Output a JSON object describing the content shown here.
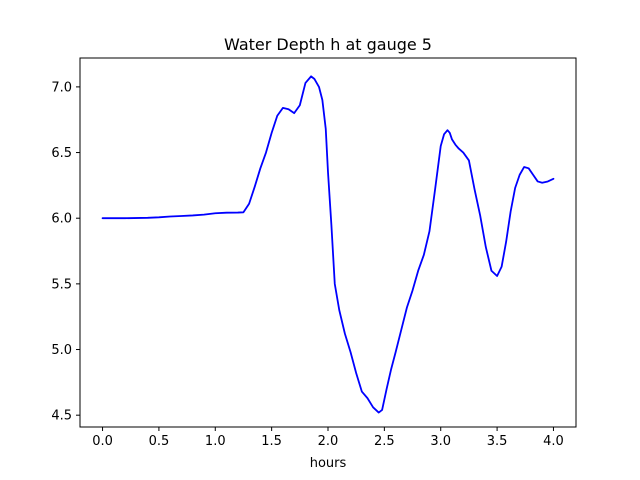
{
  "chart_data": {
    "type": "line",
    "title": "Water Depth h at gauge 5",
    "xlabel": "hours",
    "ylabel": "",
    "xlim": [
      -0.2,
      4.2
    ],
    "ylim": [
      4.41,
      7.22
    ],
    "x_ticks": [
      0.0,
      0.5,
      1.0,
      1.5,
      2.0,
      2.5,
      3.0,
      3.5,
      4.0
    ],
    "x_tick_labels": [
      "0.0",
      "0.5",
      "1.0",
      "1.5",
      "2.0",
      "2.5",
      "3.0",
      "3.5",
      "4.0"
    ],
    "y_ticks": [
      4.5,
      5.0,
      5.5,
      6.0,
      6.5,
      7.0
    ],
    "y_tick_labels": [
      "4.5",
      "5.0",
      "5.5",
      "6.0",
      "6.5",
      "7.0"
    ],
    "grid": false,
    "series": [
      {
        "name": "h",
        "color": "#0000ff",
        "x": [
          0.0,
          0.2,
          0.4,
          0.5,
          0.6,
          0.7,
          0.8,
          0.9,
          1.0,
          1.1,
          1.2,
          1.25,
          1.3,
          1.35,
          1.4,
          1.45,
          1.5,
          1.55,
          1.6,
          1.65,
          1.7,
          1.75,
          1.8,
          1.85,
          1.88,
          1.92,
          1.95,
          1.98,
          2.0,
          2.03,
          2.06,
          2.1,
          2.15,
          2.2,
          2.25,
          2.3,
          2.35,
          2.4,
          2.45,
          2.48,
          2.52,
          2.56,
          2.6,
          2.65,
          2.7,
          2.75,
          2.8,
          2.85,
          2.9,
          2.95,
          3.0,
          3.03,
          3.06,
          3.08,
          3.1,
          3.13,
          3.16,
          3.2,
          3.25,
          3.3,
          3.35,
          3.4,
          3.45,
          3.5,
          3.54,
          3.58,
          3.62,
          3.66,
          3.7,
          3.74,
          3.78,
          3.82,
          3.86,
          3.9,
          3.95,
          4.0
        ],
        "y": [
          6.0,
          6.0,
          6.003,
          6.007,
          6.013,
          6.017,
          6.021,
          6.027,
          6.038,
          6.042,
          6.043,
          6.045,
          6.11,
          6.24,
          6.38,
          6.5,
          6.65,
          6.78,
          6.84,
          6.83,
          6.8,
          6.86,
          7.03,
          7.08,
          7.06,
          7.0,
          6.9,
          6.68,
          6.35,
          5.95,
          5.5,
          5.3,
          5.12,
          4.98,
          4.82,
          4.68,
          4.63,
          4.56,
          4.52,
          4.54,
          4.7,
          4.85,
          4.98,
          5.15,
          5.32,
          5.45,
          5.6,
          5.72,
          5.9,
          6.22,
          6.55,
          6.64,
          6.67,
          6.65,
          6.6,
          6.56,
          6.53,
          6.5,
          6.44,
          6.22,
          6.02,
          5.78,
          5.6,
          5.56,
          5.63,
          5.82,
          6.05,
          6.23,
          6.33,
          6.39,
          6.38,
          6.33,
          6.28,
          6.27,
          6.28,
          6.3
        ]
      }
    ]
  }
}
